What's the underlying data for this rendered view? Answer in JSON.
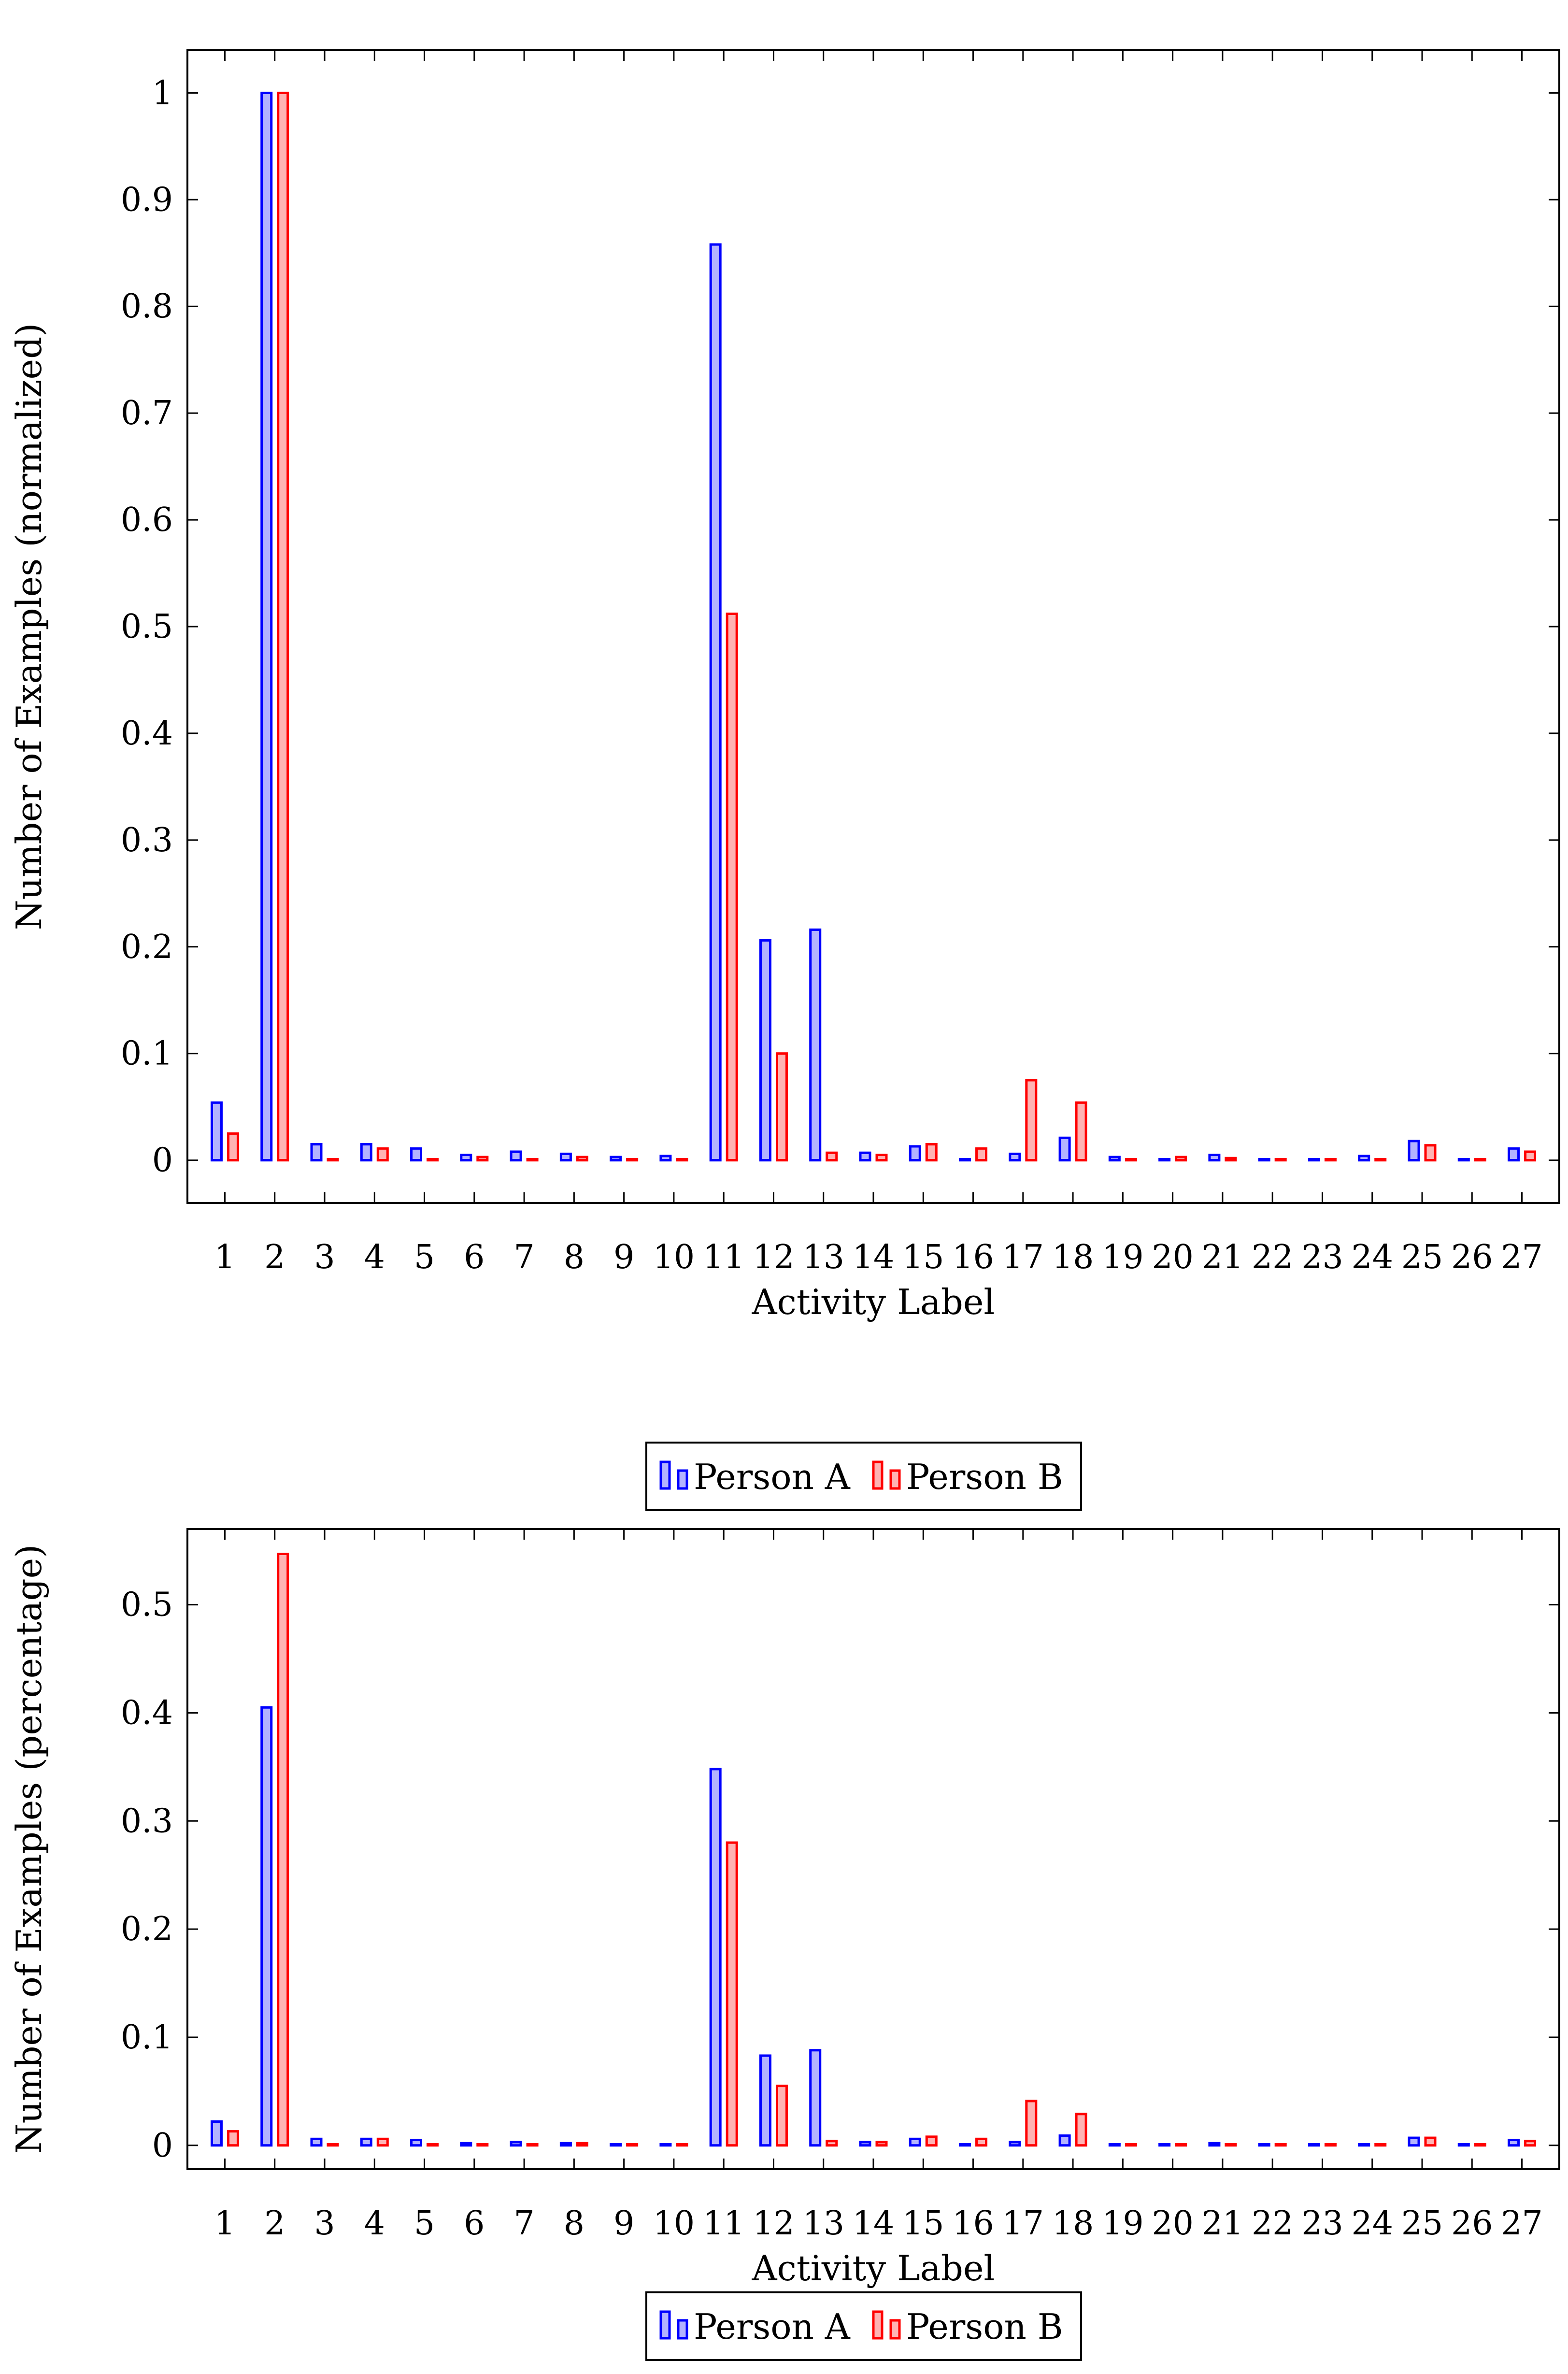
{
  "chart_data": [
    {
      "type": "bar",
      "xlabel": "Activity Label",
      "ylabel": "Number of Examples (normalized)",
      "ylim": [
        -0.04,
        1.04
      ],
      "yticks": [
        0,
        0.1,
        0.2,
        0.3,
        0.4,
        0.5,
        0.6,
        0.7,
        0.8,
        0.9,
        1
      ],
      "ytick_labels": [
        "0",
        "0.1",
        "0.2",
        "0.3",
        "0.4",
        "0.5",
        "0.6",
        "0.7",
        "0.8",
        "0.9",
        "1"
      ],
      "categories": [
        "1",
        "2",
        "3",
        "4",
        "5",
        "6",
        "7",
        "8",
        "9",
        "10",
        "11",
        "12",
        "13",
        "14",
        "15",
        "16",
        "17",
        "18",
        "19",
        "20",
        "21",
        "22",
        "23",
        "24",
        "25",
        "26",
        "27"
      ],
      "series": [
        {
          "name": "Person A",
          "color": "#0000ff",
          "fill": "#b3b3ff",
          "values": [
            0.054,
            1.0,
            0.015,
            0.015,
            0.011,
            0.005,
            0.008,
            0.006,
            0.003,
            0.004,
            0.858,
            0.206,
            0.216,
            0.007,
            0.013,
            0.001,
            0.006,
            0.021,
            0.003,
            0.001,
            0.005,
            0.001,
            0.001,
            0.004,
            0.018,
            0.001,
            0.011
          ]
        },
        {
          "name": "Person B",
          "color": "#ff0000",
          "fill": "#ffb3b3",
          "values": [
            0.025,
            1.0,
            0.001,
            0.011,
            0.001,
            0.003,
            0.001,
            0.003,
            0.001,
            0.001,
            0.512,
            0.1,
            0.007,
            0.005,
            0.015,
            0.011,
            0.075,
            0.054,
            0.001,
            0.003,
            0.002,
            0.001,
            0.001,
            0.001,
            0.014,
            0.001,
            0.008
          ]
        }
      ],
      "legend": "below"
    },
    {
      "type": "bar",
      "xlabel": "Activity Label",
      "ylabel": "Number of Examples (percentage)",
      "ylim": [
        -0.022,
        0.57
      ],
      "yticks": [
        0,
        0.1,
        0.2,
        0.3,
        0.4,
        0.5
      ],
      "ytick_labels": [
        "0",
        "0.1",
        "0.2",
        "0.3",
        "0.4",
        "0.5"
      ],
      "categories": [
        "1",
        "2",
        "3",
        "4",
        "5",
        "6",
        "7",
        "8",
        "9",
        "10",
        "11",
        "12",
        "13",
        "14",
        "15",
        "16",
        "17",
        "18",
        "19",
        "20",
        "21",
        "22",
        "23",
        "24",
        "25",
        "26",
        "27"
      ],
      "series": [
        {
          "name": "Person A",
          "color": "#0000ff",
          "fill": "#b3b3ff",
          "values": [
            0.022,
            0.405,
            0.006,
            0.006,
            0.005,
            0.002,
            0.003,
            0.002,
            0.001,
            0.001,
            0.348,
            0.083,
            0.088,
            0.003,
            0.006,
            0.001,
            0.003,
            0.009,
            0.001,
            0.001,
            0.002,
            0.001,
            0.001,
            0.001,
            0.007,
            0.001,
            0.005
          ]
        },
        {
          "name": "Person B",
          "color": "#ff0000",
          "fill": "#ffb3b3",
          "values": [
            0.013,
            0.547,
            0.001,
            0.006,
            0.001,
            0.001,
            0.001,
            0.002,
            0.001,
            0.001,
            0.28,
            0.055,
            0.004,
            0.003,
            0.008,
            0.006,
            0.041,
            0.029,
            0.001,
            0.001,
            0.001,
            0.001,
            0.001,
            0.001,
            0.007,
            0.001,
            0.004
          ]
        }
      ],
      "legend": "below"
    }
  ]
}
